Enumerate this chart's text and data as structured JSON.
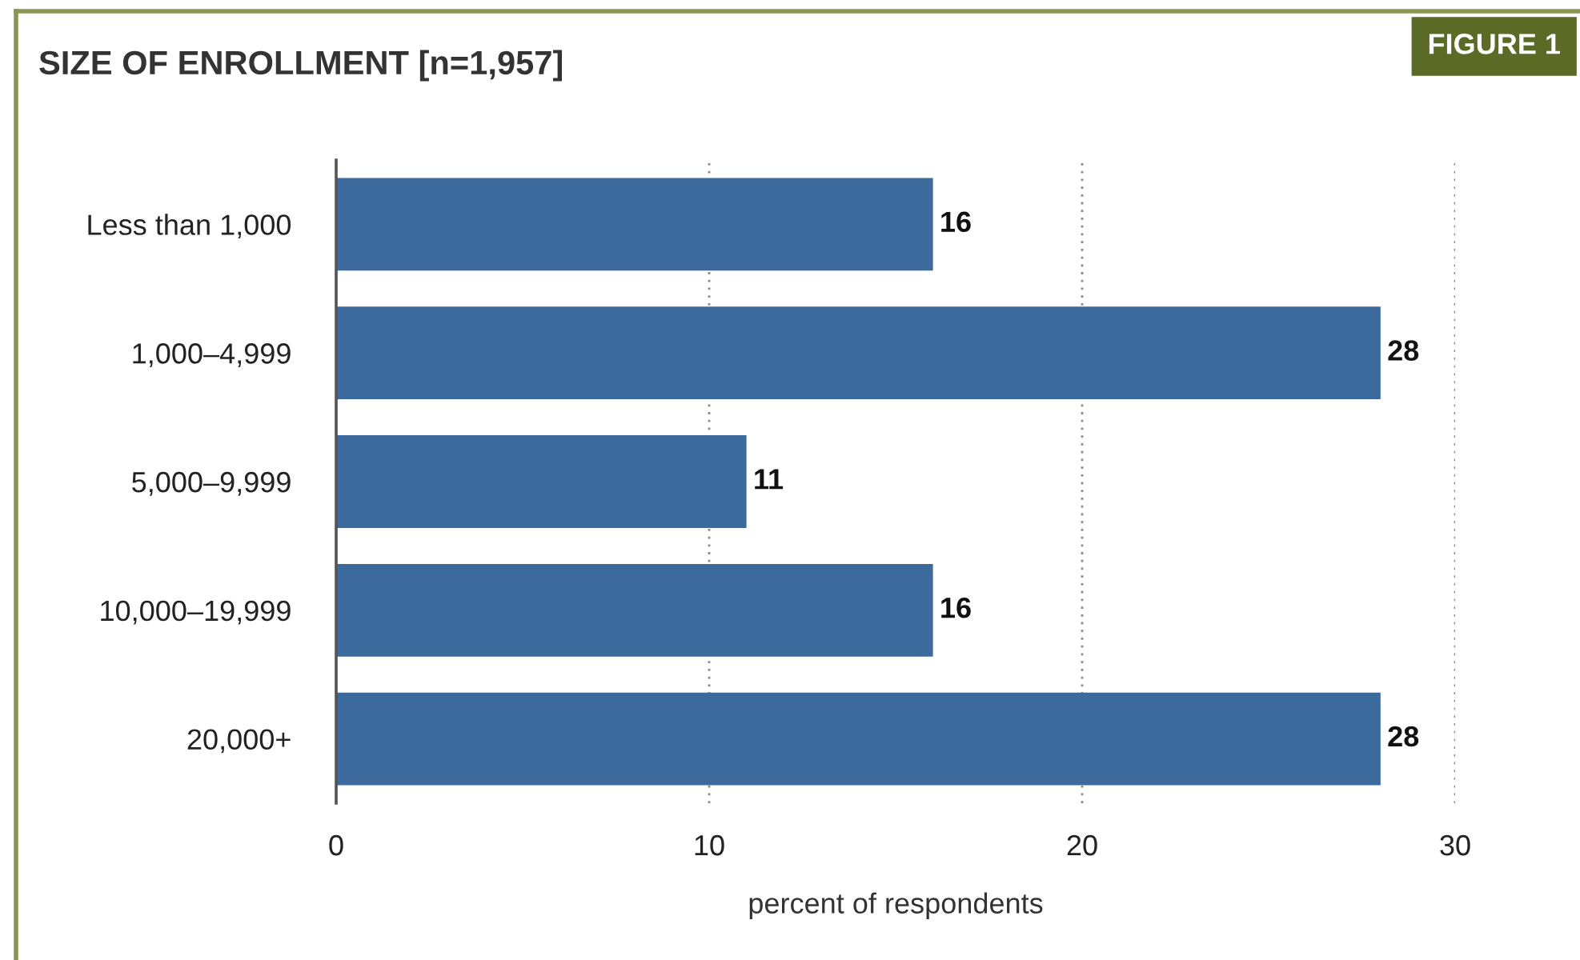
{
  "chart_data": {
    "type": "bar",
    "orientation": "horizontal",
    "title": "SIZE OF ENROLLMENT [n=1,957]",
    "xlabel": "percent of respondents",
    "categories": [
      "Less than 1,000",
      "1,000–4,999",
      "5,000–9,999",
      "10,000–19,999",
      "20,000+"
    ],
    "values": [
      16,
      28,
      11,
      16,
      28
    ],
    "color": "#3c6a9c",
    "xlim": [
      0,
      30
    ],
    "xticks": [
      0,
      10,
      20,
      30
    ],
    "grid": "x",
    "data_labels": true,
    "annotations": [
      "FIGURE 1"
    ]
  }
}
